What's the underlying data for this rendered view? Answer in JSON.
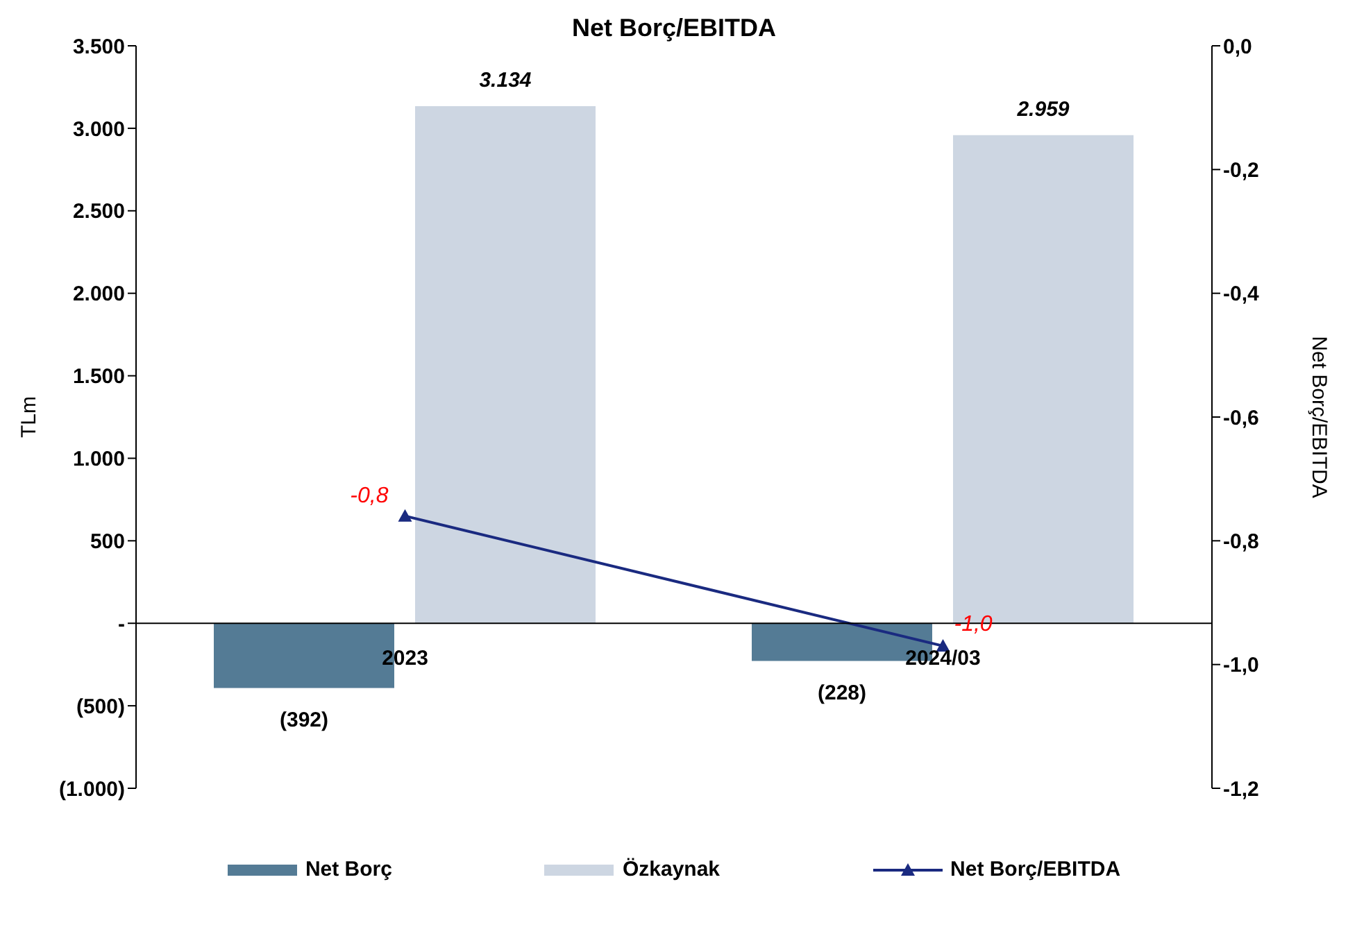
{
  "chart_data": {
    "type": "bar",
    "title": "Net Borç/EBITDA",
    "ylabel": "TLm",
    "y2label": "Net Borç/EBITDA",
    "categories": [
      "2023",
      "2024/03"
    ],
    "series": [
      {
        "name": "Net Borç",
        "color": "#547b95",
        "values": [
          -392,
          -228
        ],
        "value_labels": [
          "(392)",
          "(228)"
        ]
      },
      {
        "name": "Özkaynak",
        "color": "#cdd6e2",
        "values": [
          3134,
          2959
        ],
        "value_labels": [
          "3.134",
          "2.959"
        ]
      },
      {
        "name": "Net Borç/EBITDA",
        "type": "line",
        "axis": "y2",
        "color": "#1a2a80",
        "marker": "triangle",
        "values": [
          -0.76,
          -0.97
        ],
        "value_labels": [
          "-0,8",
          "-1,0"
        ]
      }
    ],
    "ylim": [
      -1000,
      3500
    ],
    "yticks": [
      {
        "value": -1000,
        "label": "(1.000)"
      },
      {
        "value": -500,
        "label": "(500)"
      },
      {
        "value": 0,
        "label": "-"
      },
      {
        "value": 500,
        "label": "500"
      },
      {
        "value": 1000,
        "label": "1.000"
      },
      {
        "value": 1500,
        "label": "1.500"
      },
      {
        "value": 2000,
        "label": "2.000"
      },
      {
        "value": 2500,
        "label": "2.500"
      },
      {
        "value": 3000,
        "label": "3.000"
      },
      {
        "value": 3500,
        "label": "3.500"
      }
    ],
    "y2lim": [
      -1.2,
      0
    ],
    "y2ticks": [
      {
        "value": -1.2,
        "label": "-1,2"
      },
      {
        "value": -1,
        "label": "-1,0"
      },
      {
        "value": -0.8,
        "label": "-0,8"
      },
      {
        "value": -0.6,
        "label": "-0,6"
      },
      {
        "value": -0.4,
        "label": "-0,4"
      },
      {
        "value": -0.2,
        "label": "-0,2"
      },
      {
        "value": 0,
        "label": "0,0"
      }
    ],
    "grid": false,
    "legend": "bottom"
  }
}
